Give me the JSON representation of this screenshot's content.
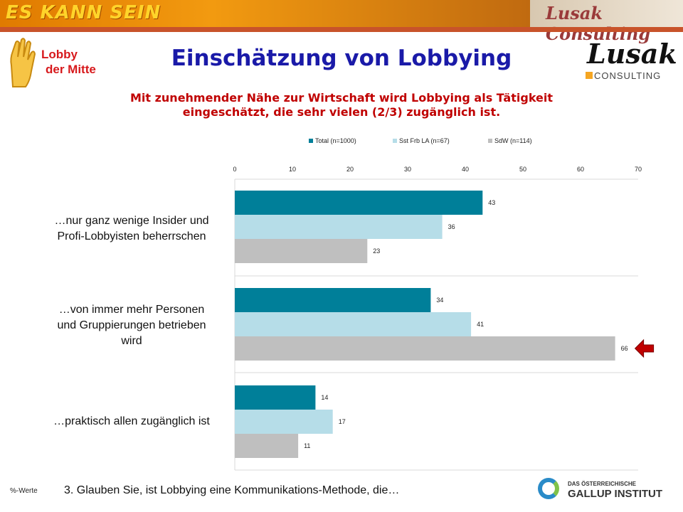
{
  "banner": {
    "slogan": "ES KANN SEIN",
    "brand": "Lusak Consulting"
  },
  "logos": {
    "lobby_line1": "Lobby",
    "lobby_line2": "der Mitte",
    "lusak_script": "Lusak",
    "lusak_sub": "CONSULTING",
    "gallup_line1": "DAS ÖSTERREICHISCHE",
    "gallup_line2": "GALLUP INSTITUT"
  },
  "title": "Einschätzung von Lobbying",
  "subtitle_line1": "Mit zunehmender Nähe zur Wirtschaft wird Lobbying als Tätigkeit",
  "subtitle_line2": "eingeschätzt, die sehr vielen (2/3) zugänglich ist.",
  "footer": {
    "unit_note": "%-Werte",
    "question": "3. Glauben Sie, ist Lobbying eine Kommunikations-Methode, die…"
  },
  "colors": {
    "total": "#007f99",
    "sst": "#b6dde8",
    "sdw": "#bfbfbf",
    "arrow": "#c00000"
  },
  "chart_data": {
    "type": "bar",
    "orientation": "horizontal",
    "xlim": [
      0,
      70
    ],
    "ticks": [
      "0",
      "10",
      "20",
      "30",
      "40",
      "50",
      "60",
      "70"
    ],
    "legend_position": "top",
    "categories": [
      [
        "…nur ganz wenige Insider und",
        "Profi-Lobbyisten beherrschen"
      ],
      [
        "…von immer mehr Personen",
        "und Gruppierungen betrieben",
        "wird"
      ],
      [
        "…praktisch allen zugänglich ist"
      ]
    ],
    "series": [
      {
        "name": "Total (n=1000)",
        "values": [
          43,
          34,
          14
        ]
      },
      {
        "name": "Sst Frb LA (n=67)",
        "values": [
          36,
          41,
          17
        ]
      },
      {
        "name": "SdW (n=114)",
        "values": [
          23,
          66,
          11
        ]
      }
    ],
    "highlight": {
      "category_index": 1,
      "series_index": 2
    }
  }
}
